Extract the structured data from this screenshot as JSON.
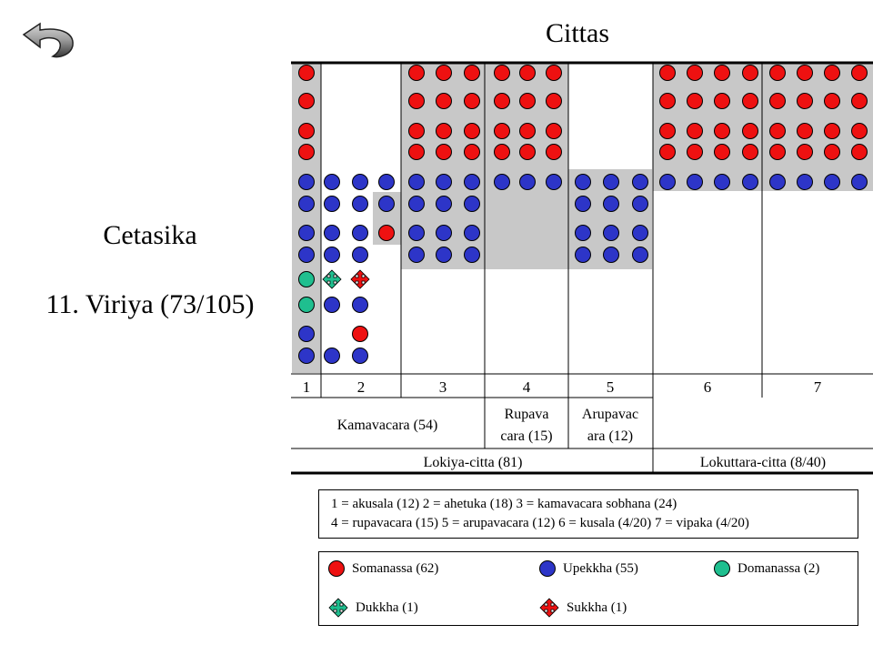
{
  "page": {
    "title": "Cittas",
    "side_title": "Cetasika",
    "side_subtitle": "11. Viriya (73/105)"
  },
  "colors": {
    "somanassa": "#ee1111",
    "upekkha": "#2d35c8",
    "domanassa": "#1fbf8f",
    "shade": "#c8c8c8"
  },
  "table": {
    "columns": [
      "1",
      "2",
      "3",
      "4",
      "5",
      "6",
      "7"
    ],
    "groups": [
      {
        "label": "Kamavacara  (54)"
      },
      {
        "label": "Rupava cara  (15)"
      },
      {
        "label": "Arupavac ara  (12)"
      }
    ],
    "totals": [
      {
        "label": "Lokiya-citta  (81)"
      },
      {
        "label": "Lokuttara-citta  (8/40)"
      }
    ]
  },
  "key_lines": [
    "1 = akusala (12) 2 = ahetuka (18) 3 = kamavacara sobhana (24)",
    "4 = rupavacara (15) 5 = arupavacara (12) 6 = kusala (4/20) 7 = vipaka (4/20)"
  ],
  "legend": [
    {
      "label": "Somanassa (62)",
      "symbol": "red-dot"
    },
    {
      "label": "Upekkha (55)",
      "symbol": "blue-dot"
    },
    {
      "label": "Domanassa (2)",
      "symbol": "green-dot"
    },
    {
      "label": "Dukkha (1)",
      "symbol": "green-cross-arrows"
    },
    {
      "label": "Sukkha (1)",
      "symbol": "red-cross-arrows"
    }
  ],
  "grid": {
    "rows": 11,
    "columns": 21,
    "cells": [
      {
        "col": 0,
        "row": 0,
        "type": "R"
      },
      {
        "col": 0,
        "row": 1,
        "type": "R"
      },
      {
        "col": 0,
        "row": 2,
        "type": "R"
      },
      {
        "col": 0,
        "row": 3,
        "type": "R"
      },
      {
        "col": 0,
        "row": 4,
        "type": "B"
      },
      {
        "col": 0,
        "row": 5,
        "type": "B"
      },
      {
        "col": 0,
        "row": 6,
        "type": "B"
      },
      {
        "col": 0,
        "row": 7,
        "type": "B"
      },
      {
        "col": 0,
        "row": 8,
        "type": "G"
      },
      {
        "col": 0,
        "row": 9,
        "type": "G"
      },
      {
        "col": 0,
        "row": 10,
        "type": "B"
      },
      {
        "col": 0,
        "row": 11,
        "type": "B"
      },
      {
        "col": 1,
        "row": 4,
        "type": "B"
      },
      {
        "col": 1,
        "row": 5,
        "type": "B"
      },
      {
        "col": 1,
        "row": 6,
        "type": "B"
      },
      {
        "col": 1,
        "row": 7,
        "type": "B"
      },
      {
        "col": 1,
        "row": 8,
        "type": "DX"
      },
      {
        "col": 1,
        "row": 11,
        "type": "B"
      },
      {
        "col": 2,
        "row": 4,
        "type": "B"
      },
      {
        "col": 2,
        "row": 5,
        "type": "B"
      },
      {
        "col": 2,
        "row": 6,
        "type": "B"
      },
      {
        "col": 2,
        "row": 7,
        "type": "B"
      },
      {
        "col": 2,
        "row": 8,
        "type": "SX"
      },
      {
        "col": 2,
        "row": 9,
        "type": "B"
      },
      {
        "col": 2,
        "row": 10,
        "type": "R"
      },
      {
        "col": 2,
        "row": 11,
        "type": "B"
      },
      {
        "col": 3,
        "row": 4,
        "type": "B"
      },
      {
        "col": 3,
        "row": 5,
        "type": "B"
      },
      {
        "col": 3,
        "row": 6,
        "type": "R"
      },
      {
        "col": 1,
        "row": 9,
        "type": "B"
      },
      {
        "col": 4,
        "row": 0,
        "type": "R"
      },
      {
        "col": 4,
        "row": 1,
        "type": "R"
      },
      {
        "col": 4,
        "row": 2,
        "type": "R"
      },
      {
        "col": 4,
        "row": 3,
        "type": "R"
      },
      {
        "col": 4,
        "row": 4,
        "type": "B"
      },
      {
        "col": 4,
        "row": 5,
        "type": "B"
      },
      {
        "col": 4,
        "row": 6,
        "type": "B"
      },
      {
        "col": 4,
        "row": 7,
        "type": "B"
      },
      {
        "col": 5,
        "row": 0,
        "type": "R"
      },
      {
        "col": 5,
        "row": 1,
        "type": "R"
      },
      {
        "col": 5,
        "row": 2,
        "type": "R"
      },
      {
        "col": 5,
        "row": 3,
        "type": "R"
      },
      {
        "col": 5,
        "row": 4,
        "type": "B"
      },
      {
        "col": 5,
        "row": 5,
        "type": "B"
      },
      {
        "col": 5,
        "row": 6,
        "type": "B"
      },
      {
        "col": 5,
        "row": 7,
        "type": "B"
      },
      {
        "col": 6,
        "row": 0,
        "type": "R"
      },
      {
        "col": 6,
        "row": 1,
        "type": "R"
      },
      {
        "col": 6,
        "row": 2,
        "type": "R"
      },
      {
        "col": 6,
        "row": 3,
        "type": "R"
      },
      {
        "col": 6,
        "row": 4,
        "type": "B"
      },
      {
        "col": 6,
        "row": 5,
        "type": "B"
      },
      {
        "col": 6,
        "row": 6,
        "type": "B"
      },
      {
        "col": 6,
        "row": 7,
        "type": "B"
      },
      {
        "col": 7,
        "row": 0,
        "type": "R"
      },
      {
        "col": 7,
        "row": 1,
        "type": "R"
      },
      {
        "col": 7,
        "row": 2,
        "type": "R"
      },
      {
        "col": 7,
        "row": 3,
        "type": "R"
      },
      {
        "col": 7,
        "row": 4,
        "type": "B"
      },
      {
        "col": 8,
        "row": 0,
        "type": "R"
      },
      {
        "col": 8,
        "row": 1,
        "type": "R"
      },
      {
        "col": 8,
        "row": 2,
        "type": "R"
      },
      {
        "col": 8,
        "row": 3,
        "type": "R"
      },
      {
        "col": 8,
        "row": 4,
        "type": "B"
      },
      {
        "col": 9,
        "row": 0,
        "type": "R"
      },
      {
        "col": 9,
        "row": 1,
        "type": "R"
      },
      {
        "col": 9,
        "row": 2,
        "type": "R"
      },
      {
        "col": 9,
        "row": 3,
        "type": "R"
      },
      {
        "col": 9,
        "row": 4,
        "type": "B"
      },
      {
        "col": 10,
        "row": 4,
        "type": "B"
      },
      {
        "col": 10,
        "row": 5,
        "type": "B"
      },
      {
        "col": 10,
        "row": 6,
        "type": "B"
      },
      {
        "col": 10,
        "row": 7,
        "type": "B"
      },
      {
        "col": 11,
        "row": 4,
        "type": "B"
      },
      {
        "col": 11,
        "row": 5,
        "type": "B"
      },
      {
        "col": 11,
        "row": 6,
        "type": "B"
      },
      {
        "col": 11,
        "row": 7,
        "type": "B"
      },
      {
        "col": 12,
        "row": 4,
        "type": "B"
      },
      {
        "col": 12,
        "row": 5,
        "type": "B"
      },
      {
        "col": 12,
        "row": 6,
        "type": "B"
      },
      {
        "col": 12,
        "row": 7,
        "type": "B"
      },
      {
        "col": 13,
        "row": 0,
        "type": "R"
      },
      {
        "col": 13,
        "row": 1,
        "type": "R"
      },
      {
        "col": 13,
        "row": 2,
        "type": "R"
      },
      {
        "col": 13,
        "row": 3,
        "type": "R"
      },
      {
        "col": 13,
        "row": 4,
        "type": "B"
      },
      {
        "col": 14,
        "row": 0,
        "type": "R"
      },
      {
        "col": 14,
        "row": 1,
        "type": "R"
      },
      {
        "col": 14,
        "row": 2,
        "type": "R"
      },
      {
        "col": 14,
        "row": 3,
        "type": "R"
      },
      {
        "col": 14,
        "row": 4,
        "type": "B"
      },
      {
        "col": 15,
        "row": 0,
        "type": "R"
      },
      {
        "col": 15,
        "row": 1,
        "type": "R"
      },
      {
        "col": 15,
        "row": 2,
        "type": "R"
      },
      {
        "col": 15,
        "row": 3,
        "type": "R"
      },
      {
        "col": 15,
        "row": 4,
        "type": "B"
      },
      {
        "col": 16,
        "row": 0,
        "type": "R"
      },
      {
        "col": 16,
        "row": 1,
        "type": "R"
      },
      {
        "col": 16,
        "row": 2,
        "type": "R"
      },
      {
        "col": 16,
        "row": 3,
        "type": "R"
      },
      {
        "col": 16,
        "row": 4,
        "type": "B"
      },
      {
        "col": 17,
        "row": 0,
        "type": "R"
      },
      {
        "col": 17,
        "row": 1,
        "type": "R"
      },
      {
        "col": 17,
        "row": 2,
        "type": "R"
      },
      {
        "col": 17,
        "row": 3,
        "type": "R"
      },
      {
        "col": 17,
        "row": 4,
        "type": "B"
      },
      {
        "col": 18,
        "row": 0,
        "type": "R"
      },
      {
        "col": 18,
        "row": 1,
        "type": "R"
      },
      {
        "col": 18,
        "row": 2,
        "type": "R"
      },
      {
        "col": 18,
        "row": 3,
        "type": "R"
      },
      {
        "col": 18,
        "row": 4,
        "type": "B"
      },
      {
        "col": 19,
        "row": 0,
        "type": "R"
      },
      {
        "col": 19,
        "row": 1,
        "type": "R"
      },
      {
        "col": 19,
        "row": 2,
        "type": "R"
      },
      {
        "col": 19,
        "row": 3,
        "type": "R"
      },
      {
        "col": 19,
        "row": 4,
        "type": "B"
      },
      {
        "col": 20,
        "row": 0,
        "type": "R"
      },
      {
        "col": 20,
        "row": 1,
        "type": "R"
      },
      {
        "col": 20,
        "row": 2,
        "type": "R"
      },
      {
        "col": 20,
        "row": 3,
        "type": "R"
      },
      {
        "col": 20,
        "row": 4,
        "type": "B"
      }
    ]
  }
}
